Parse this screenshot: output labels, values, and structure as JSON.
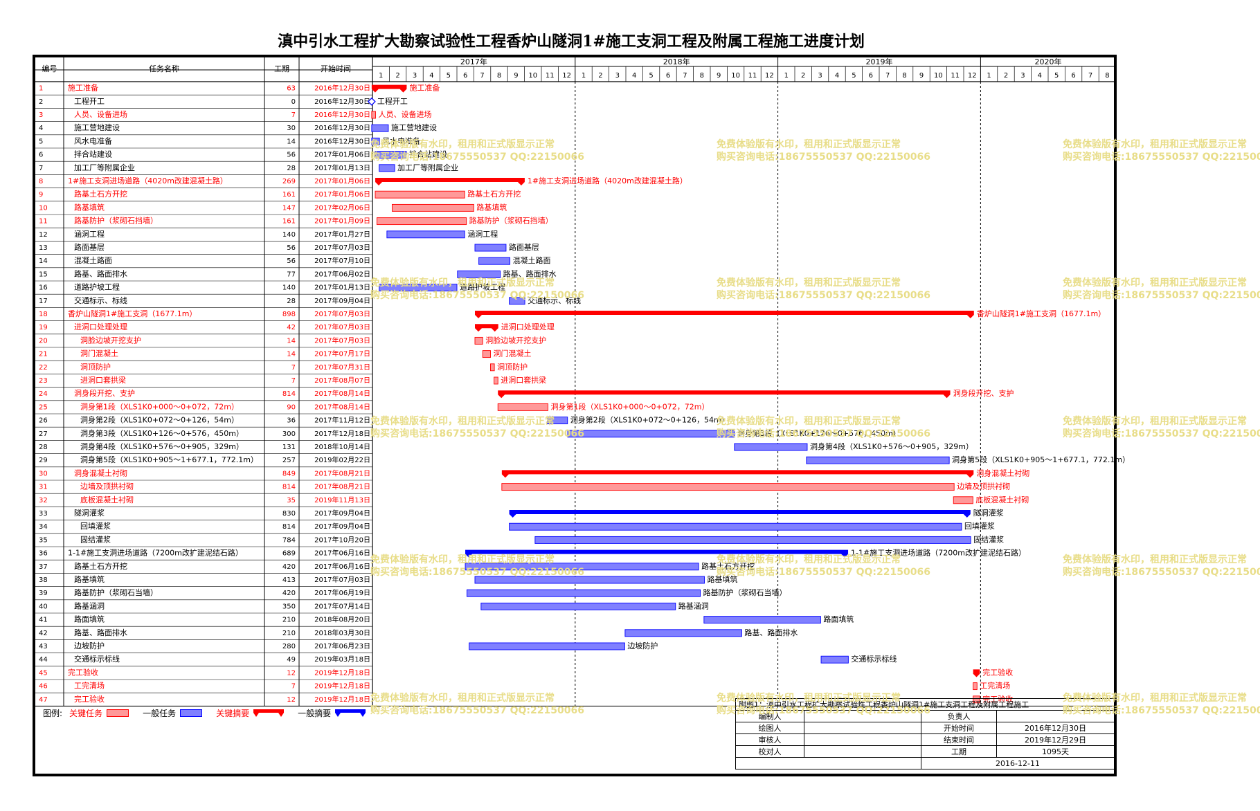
{
  "title": "滇中引水工程扩大勘察试验性工程香炉山隧洞1#施工支洞工程及附属工程施工进度计划",
  "columns": {
    "id": "编号",
    "name": "任务名称",
    "duration": "工期",
    "start": "开始时间"
  },
  "years": [
    "2017年",
    "2018年",
    "2019年",
    "2020年"
  ],
  "months": [
    "1",
    "2",
    "3",
    "4",
    "5",
    "6",
    "7",
    "8",
    "9",
    "10",
    "11",
    "12"
  ],
  "last_year_months": [
    "1",
    "2",
    "3",
    "4",
    "5",
    "6",
    "7",
    "8"
  ],
  "colors": {
    "critical": "#ff0000",
    "critical_bar": "#ff9999",
    "normal": "#0000ff",
    "normal_bar": "#8080ff",
    "watermark": "#e8dd88"
  },
  "chart_data": {
    "type": "gantt",
    "timeline_start": "2017-01",
    "timeline_end": "2020-08",
    "tasks": [
      {
        "id": "1",
        "name": "施工准备",
        "duration": "63",
        "start": "2016年12月30日",
        "type": "critical-summary",
        "level": 0,
        "bar_label": "施工准备"
      },
      {
        "id": "2",
        "name": "工程开工",
        "duration": "0",
        "start": "2016年12月30日",
        "type": "milestone",
        "level": 1,
        "bar_label": "工程开工"
      },
      {
        "id": "3",
        "name": "人员、设备进场",
        "duration": "7",
        "start": "2016年12月30日",
        "type": "critical",
        "level": 1,
        "bar_label": "人员、设备进场"
      },
      {
        "id": "4",
        "name": "施工营地建设",
        "duration": "30",
        "start": "2016年12月30日",
        "type": "normal",
        "level": 1,
        "bar_label": "施工营地建设"
      },
      {
        "id": "5",
        "name": "风水电准备",
        "duration": "14",
        "start": "2016年12月30日",
        "type": "normal",
        "level": 1,
        "bar_label": "风水电准备"
      },
      {
        "id": "6",
        "name": "拌合站建设",
        "duration": "56",
        "start": "2017年01月06日",
        "type": "normal",
        "level": 1,
        "bar_label": "拌合站建设"
      },
      {
        "id": "7",
        "name": "加工厂等附属企业",
        "duration": "28",
        "start": "2017年01月13日",
        "type": "normal",
        "level": 1,
        "bar_label": "加工厂等附属企业"
      },
      {
        "id": "8",
        "name": "1#施工支洞进场道路（4020m改建混凝土路）",
        "duration": "269",
        "start": "2017年01月06日",
        "type": "critical-summary",
        "level": 0,
        "bar_label": "1#施工支洞进场道路（4020m改建混凝土路）"
      },
      {
        "id": "9",
        "name": "路基土石方开挖",
        "duration": "161",
        "start": "2017年01月06日",
        "type": "critical",
        "level": 1,
        "bar_label": "路基土石方开挖"
      },
      {
        "id": "10",
        "name": "路基填筑",
        "duration": "147",
        "start": "2017年02月06日",
        "type": "critical",
        "level": 1,
        "bar_label": "路基填筑"
      },
      {
        "id": "11",
        "name": "路基防护（浆砌石挡墙）",
        "duration": "161",
        "start": "2017年01月09日",
        "type": "critical",
        "level": 1,
        "bar_label": "路基防护（浆砌石挡墙）"
      },
      {
        "id": "12",
        "name": "涵洞工程",
        "duration": "140",
        "start": "2017年01月27日",
        "type": "normal",
        "level": 1,
        "bar_label": "涵洞工程"
      },
      {
        "id": "13",
        "name": "路面基层",
        "duration": "56",
        "start": "2017年07月03日",
        "type": "normal",
        "level": 1,
        "bar_label": "路面基层"
      },
      {
        "id": "14",
        "name": "混凝土路面",
        "duration": "56",
        "start": "2017年07月10日",
        "type": "normal",
        "level": 1,
        "bar_label": "混凝土路面"
      },
      {
        "id": "15",
        "name": "路基、路面排水",
        "duration": "77",
        "start": "2017年06月02日",
        "type": "normal",
        "level": 1,
        "bar_label": "路基、路面排水"
      },
      {
        "id": "16",
        "name": "道路护坡工程",
        "duration": "140",
        "start": "2017年01月13日",
        "type": "normal",
        "level": 1,
        "bar_label": "道路护坡工程"
      },
      {
        "id": "17",
        "name": "交通标示、标线",
        "duration": "28",
        "start": "2017年09月04日",
        "type": "normal",
        "level": 1,
        "bar_label": "交通标示、标线"
      },
      {
        "id": "18",
        "name": "香炉山隧洞1#施工支洞（1677.1m）",
        "duration": "898",
        "start": "2017年07月03日",
        "type": "critical-summary",
        "level": 0,
        "bar_label": "香炉山隧洞1#施工支洞（1677.1m）"
      },
      {
        "id": "19",
        "name": "进洞口处理处理",
        "duration": "42",
        "start": "2017年07月03日",
        "type": "critical-summary",
        "level": 1,
        "bar_label": "进洞口处理处理"
      },
      {
        "id": "20",
        "name": "洞脸边坡开挖支护",
        "duration": "14",
        "start": "2017年07月03日",
        "type": "critical",
        "level": 2,
        "bar_label": "洞脸边坡开挖支护"
      },
      {
        "id": "21",
        "name": "洞门混凝土",
        "duration": "14",
        "start": "2017年07月17日",
        "type": "critical",
        "level": 2,
        "bar_label": "洞门混凝土"
      },
      {
        "id": "22",
        "name": "洞顶防护",
        "duration": "7",
        "start": "2017年07月31日",
        "type": "critical",
        "level": 2,
        "bar_label": "洞顶防护"
      },
      {
        "id": "23",
        "name": "进洞口套拱梁",
        "duration": "7",
        "start": "2017年08月07日",
        "type": "critical",
        "level": 2,
        "bar_label": "进洞口套拱梁"
      },
      {
        "id": "24",
        "name": "洞身段开挖、支护",
        "duration": "814",
        "start": "2017年08月14日",
        "type": "critical-summary",
        "level": 1,
        "bar_label": "洞身段开挖、支护"
      },
      {
        "id": "25",
        "name": "洞身第1段（XLS1K0+000～0+072，72m）",
        "duration": "90",
        "start": "2017年08月14日",
        "type": "critical",
        "level": 2,
        "bar_label": "洞身第1段（XLS1K0+000～0+072，72m）"
      },
      {
        "id": "26",
        "name": "洞身第2段（XLS1K0+072～0+126，54m）",
        "duration": "36",
        "start": "2017年11月12日",
        "type": "normal",
        "level": 2,
        "bar_label": "洞身第2段（XLS1K0+072～0+126，54m）"
      },
      {
        "id": "27",
        "name": "洞身第3段（XLS1K0+126～0+576，450m）",
        "duration": "300",
        "start": "2017年12月18日",
        "type": "normal",
        "level": 2,
        "bar_label": "洞身第3段（XLS1K0+126～0+576，450m）"
      },
      {
        "id": "28",
        "name": "洞身第4段（XLS1K0+576～0+905，329m）",
        "duration": "131",
        "start": "2018年10月14日",
        "type": "normal",
        "level": 2,
        "bar_label": "洞身第4段（XLS1K0+576～0+905，329m）"
      },
      {
        "id": "29",
        "name": "洞身第5段（XLS1K0+905～1+677.1，772.1m）",
        "duration": "257",
        "start": "2019年02月22日",
        "type": "normal",
        "level": 2,
        "bar_label": "洞身第5段（XLS1K0+905～1+677.1，772.1m）"
      },
      {
        "id": "30",
        "name": "洞身混凝土衬砌",
        "duration": "849",
        "start": "2017年08月21日",
        "type": "critical-summary",
        "level": 1,
        "bar_label": "洞身混凝土衬砌"
      },
      {
        "id": "31",
        "name": "边墙及顶拱衬砌",
        "duration": "814",
        "start": "2017年08月21日",
        "type": "critical",
        "level": 2,
        "bar_label": "边墙及顶拱衬砌"
      },
      {
        "id": "32",
        "name": "底板混凝土衬砌",
        "duration": "35",
        "start": "2019年11月13日",
        "type": "critical",
        "level": 2,
        "bar_label": "底板混凝土衬砌"
      },
      {
        "id": "33",
        "name": "隧洞灌浆",
        "duration": "830",
        "start": "2017年09月04日",
        "type": "normal-summary",
        "level": 1,
        "bar_label": "隧洞灌浆"
      },
      {
        "id": "34",
        "name": "回填灌浆",
        "duration": "814",
        "start": "2017年09月04日",
        "type": "normal",
        "level": 2,
        "bar_label": "回填灌浆"
      },
      {
        "id": "35",
        "name": "固结灌浆",
        "duration": "784",
        "start": "2017年10月20日",
        "type": "normal",
        "level": 2,
        "bar_label": "固结灌浆"
      },
      {
        "id": "36",
        "name": "1-1#施工支洞进场道路（7200m改扩建泥结石路）",
        "duration": "689",
        "start": "2017年06月16日",
        "type": "normal-summary",
        "level": 0,
        "bar_label": "1-1#施工支洞进场道路（7200m改扩建泥结石路）"
      },
      {
        "id": "37",
        "name": "路基土石方开挖",
        "duration": "420",
        "start": "2017年06月16日",
        "type": "normal",
        "level": 1,
        "bar_label": "路基土石方开挖"
      },
      {
        "id": "38",
        "name": "路基填筑",
        "duration": "413",
        "start": "2017年07月03日",
        "type": "normal",
        "level": 1,
        "bar_label": "路基填筑"
      },
      {
        "id": "39",
        "name": "路基防护（浆砌石当墙）",
        "duration": "420",
        "start": "2017年06月19日",
        "type": "normal",
        "level": 1,
        "bar_label": "路基防护（浆砌石当墙）"
      },
      {
        "id": "40",
        "name": "路基涵洞",
        "duration": "350",
        "start": "2017年07月14日",
        "type": "normal",
        "level": 1,
        "bar_label": "路基涵洞"
      },
      {
        "id": "41",
        "name": "路面填筑",
        "duration": "210",
        "start": "2018年08月20日",
        "type": "normal",
        "level": 1,
        "bar_label": "路面填筑"
      },
      {
        "id": "42",
        "name": "路基、路面排水",
        "duration": "210",
        "start": "2018年03月30日",
        "type": "normal",
        "level": 1,
        "bar_label": "路基、路面排水"
      },
      {
        "id": "43",
        "name": "边坡防护",
        "duration": "280",
        "start": "2017年06月23日",
        "type": "normal",
        "level": 1,
        "bar_label": "边坡防护"
      },
      {
        "id": "44",
        "name": "交通标示标线",
        "duration": "49",
        "start": "2019年03月18日",
        "type": "normal",
        "level": 1,
        "bar_label": "交通标示标线"
      },
      {
        "id": "45",
        "name": "完工验收",
        "duration": "12",
        "start": "2019年12月18日",
        "type": "critical-summary",
        "level": 0,
        "bar_label": "完工验收"
      },
      {
        "id": "46",
        "name": "工完清场",
        "duration": "7",
        "start": "2019年12月18日",
        "type": "critical",
        "level": 1,
        "bar_label": "工完清场"
      },
      {
        "id": "47",
        "name": "完工验收",
        "duration": "12",
        "start": "2019年12月18日",
        "type": "critical",
        "level": 1,
        "bar_label": "完工验收"
      }
    ]
  },
  "legend": {
    "title": "图例:",
    "items": [
      {
        "label": "关键任务",
        "kind": "critical-task"
      },
      {
        "label": "一般任务",
        "kind": "normal-task"
      },
      {
        "label": "关键摘要",
        "kind": "critical-summary"
      },
      {
        "label": "一般摘要",
        "kind": "normal-summary"
      }
    ]
  },
  "info_box": {
    "header": "附图1：滇中引水工程扩大勘察试验性工程香炉山隧洞1#施工支洞工程及附属工程施工",
    "rows": [
      [
        "编制人",
        "",
        "负责人",
        ""
      ],
      [
        "绘图人",
        "",
        "开始时间",
        "2016年12月30日"
      ],
      [
        "审核人",
        "",
        "结束时间",
        "2019年12月29日"
      ],
      [
        "校对人",
        "",
        "工期",
        "1095天"
      ]
    ],
    "date": "2016-12-11"
  },
  "watermark": {
    "line1": "免费体验版有水印，租用和正式版显示正常",
    "line2": "购买咨询电话:18675550537 QQ:22150066"
  }
}
